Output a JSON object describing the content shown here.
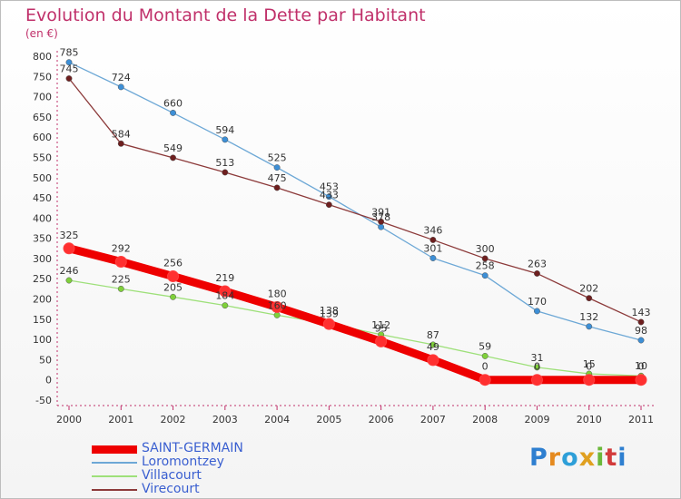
{
  "title": "Evolution du Montant de la Dette par Habitant",
  "subtitle": "(en €)",
  "logo": {
    "text": "Proxiti",
    "letters": [
      {
        "ch": "P",
        "color": "#2e7fd0"
      },
      {
        "ch": "r",
        "color": "#e58a1f"
      },
      {
        "ch": "o",
        "color": "#2e9fd8"
      },
      {
        "ch": "x",
        "color": "#e0a020"
      },
      {
        "ch": "i",
        "color": "#6bb83a"
      },
      {
        "ch": "t",
        "color": "#d23b3b"
      },
      {
        "ch": "i",
        "color": "#2e7fd0"
      }
    ]
  },
  "chart_data": {
    "type": "line",
    "title": "Evolution du Montant de la Dette par Habitant",
    "ylabel": "(en €)",
    "x": [
      "2000",
      "2001",
      "2002",
      "2003",
      "2004",
      "2005",
      "2006",
      "2007",
      "2008",
      "2009",
      "2010",
      "2011"
    ],
    "ylim": [
      -50,
      800
    ],
    "yticks": [
      -50,
      0,
      50,
      100,
      150,
      200,
      250,
      300,
      350,
      400,
      450,
      500,
      550,
      600,
      650,
      700,
      750,
      800
    ],
    "grid": false,
    "legend_position": "bottom-left",
    "series": [
      {
        "name": "SAINT-GERMAIN",
        "color": "#ee0000",
        "width": 9,
        "point_color": "#ff3030",
        "values": [
          325,
          292,
          256,
          219,
          180,
          138,
          95,
          49,
          0,
          0,
          0,
          0
        ],
        "labels": [
          "325",
          "292",
          "256",
          "219",
          "180",
          "138",
          "95",
          "49",
          "0",
          "0",
          "0",
          "0"
        ]
      },
      {
        "name": "Loromontzey",
        "color": "#6da8d6",
        "width": 1.3,
        "point_color": "#3d8fd6",
        "values": [
          785,
          724,
          660,
          594,
          525,
          453,
          378,
          301,
          258,
          170,
          132,
          98
        ],
        "labels": [
          "785",
          "724",
          "660",
          "594",
          "525",
          "453",
          "378",
          "301",
          "258",
          "170",
          "132",
          "98"
        ]
      },
      {
        "name": "Villacourt",
        "color": "#9ee07a",
        "width": 1.3,
        "point_color": "#7fd03a",
        "values": [
          246,
          225,
          205,
          184,
          160,
          139,
          112,
          87,
          59,
          31,
          15,
          10
        ],
        "labels": [
          "246",
          "225",
          "205",
          "184",
          "160",
          "139",
          "112",
          "87",
          "59",
          "31",
          "15",
          "10"
        ]
      },
      {
        "name": "Virecourt",
        "color": "#8c3a3a",
        "width": 1.3,
        "point_color": "#6e1f1f",
        "values": [
          745,
          584,
          549,
          513,
          475,
          433,
          391,
          346,
          300,
          263,
          202,
          143
        ],
        "labels": [
          "745",
          "584",
          "549",
          "513",
          "475",
          "433",
          "391",
          "346",
          "300",
          "263",
          "202",
          "143"
        ]
      }
    ]
  }
}
